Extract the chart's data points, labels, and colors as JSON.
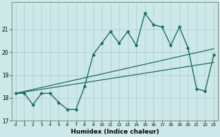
{
  "xlabel": "Humidex (Indice chaleur)",
  "background_color": "#cce8e8",
  "line_color": "#1a6b5a",
  "grid_color": "#aacccc",
  "xlim": [
    -0.5,
    23.5
  ],
  "ylim": [
    17,
    22.2
  ],
  "yticks": [
    17,
    18,
    19,
    20,
    21
  ],
  "xticks": [
    0,
    1,
    2,
    3,
    4,
    5,
    6,
    7,
    8,
    9,
    10,
    11,
    12,
    13,
    14,
    15,
    16,
    17,
    18,
    19,
    20,
    21,
    22,
    23
  ],
  "main_x": [
    0,
    1,
    2,
    3,
    4,
    5,
    6,
    7,
    8,
    9,
    10,
    11,
    12,
    13,
    14,
    15,
    16,
    17,
    18,
    19,
    20,
    21,
    22,
    23
  ],
  "main_y": [
    18.2,
    18.2,
    17.7,
    18.2,
    18.2,
    17.8,
    17.5,
    17.5,
    18.5,
    19.9,
    20.4,
    20.9,
    20.4,
    20.9,
    20.3,
    21.7,
    21.2,
    21.1,
    20.3,
    21.1,
    20.2,
    18.4,
    18.3,
    19.9
  ],
  "trend1_x": [
    0,
    23
  ],
  "trend1_y": [
    18.2,
    19.55
  ],
  "trend2_x": [
    0,
    23
  ],
  "trend2_y": [
    18.2,
    20.15
  ]
}
